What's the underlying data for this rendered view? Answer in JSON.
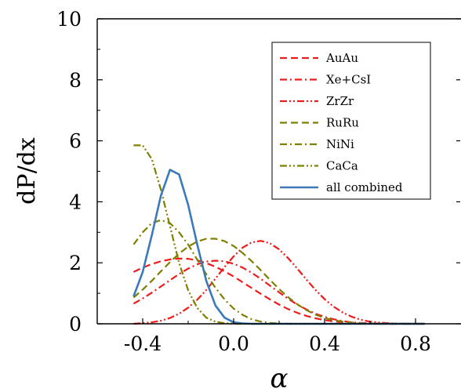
{
  "chart_data": {
    "type": "line",
    "xlabel": "α",
    "ylabel": "dP/dx",
    "xlim": [
      -0.6,
      1.0
    ],
    "ylim": [
      0,
      10
    ],
    "x_ticks": [
      -0.4,
      0.0,
      0.4,
      0.8
    ],
    "x_tick_labels": [
      "-0.4",
      "0.0",
      "0.4",
      "0.8"
    ],
    "y_ticks": [
      0,
      2,
      4,
      6,
      8,
      10
    ],
    "y_tick_labels": [
      "0",
      "2",
      "4",
      "6",
      "8",
      "10"
    ],
    "grid": false,
    "legend_position": "top-right",
    "x": [
      -0.44,
      -0.4,
      -0.36,
      -0.32,
      -0.28,
      -0.24,
      -0.2,
      -0.16,
      -0.12,
      -0.08,
      -0.04,
      0.0,
      0.04,
      0.08,
      0.12,
      0.16,
      0.2,
      0.24,
      0.28,
      0.32,
      0.36,
      0.4,
      0.44,
      0.48,
      0.52,
      0.56,
      0.6,
      0.64,
      0.68,
      0.72,
      0.76,
      0.8,
      0.84
    ],
    "series": [
      {
        "name": "AuAu",
        "color": "#ee1c1c",
        "dash": "dashed",
        "values": [
          1.7,
          1.84,
          1.96,
          2.05,
          2.11,
          2.14,
          2.13,
          2.08,
          1.99,
          1.87,
          1.72,
          1.55,
          1.36,
          1.17,
          0.98,
          0.8,
          0.63,
          0.48,
          0.36,
          0.26,
          0.18,
          0.12,
          0.08,
          0.05,
          0.03,
          0.02,
          0.01,
          0.0,
          0.0,
          0.0,
          0.0,
          0.0,
          0.0
        ]
      },
      {
        "name": "Xe+CsI",
        "color": "#ee1c1c",
        "dash": "dashdot",
        "values": [
          0.66,
          0.83,
          1.02,
          1.22,
          1.43,
          1.63,
          1.81,
          1.95,
          2.04,
          2.07,
          2.05,
          1.97,
          1.84,
          1.67,
          1.47,
          1.25,
          1.03,
          0.82,
          0.63,
          0.47,
          0.33,
          0.23,
          0.15,
          0.09,
          0.05,
          0.03,
          0.02,
          0.01,
          0.0,
          0.0,
          0.0,
          0.0,
          0.0
        ]
      },
      {
        "name": "ZrZr",
        "color": "#ee1c1c",
        "dash": "dashdotdot",
        "values": [
          0.0,
          0.02,
          0.05,
          0.1,
          0.19,
          0.33,
          0.53,
          0.79,
          1.11,
          1.48,
          1.86,
          2.21,
          2.5,
          2.67,
          2.72,
          2.64,
          2.44,
          2.15,
          1.81,
          1.45,
          1.11,
          0.81,
          0.56,
          0.37,
          0.23,
          0.13,
          0.07,
          0.04,
          0.02,
          0.01,
          0.0,
          0.0,
          0.0
        ]
      },
      {
        "name": "RuRu",
        "color": "#7f7f00",
        "dash": "dashed",
        "values": [
          0.86,
          1.12,
          1.41,
          1.72,
          2.02,
          2.3,
          2.53,
          2.7,
          2.79,
          2.79,
          2.71,
          2.55,
          2.32,
          2.05,
          1.75,
          1.44,
          1.14,
          0.87,
          0.64,
          0.45,
          0.3,
          0.19,
          0.12,
          0.07,
          0.04,
          0.02,
          0.01,
          0.0,
          0.0,
          0.0,
          0.0,
          0.0,
          0.0
        ]
      },
      {
        "name": "NiNi",
        "color": "#7f7f00",
        "dash": "dashdot",
        "values": [
          2.6,
          3.0,
          3.3,
          3.4,
          3.3,
          3.0,
          2.6,
          2.1,
          1.62,
          1.18,
          0.8,
          0.5,
          0.29,
          0.15,
          0.07,
          0.03,
          0.01,
          0.0,
          0.0,
          0.0,
          0.0,
          0.0,
          0.0,
          0.0,
          0.0,
          0.0,
          0.0,
          0.0,
          0.0,
          0.0,
          0.0,
          0.0,
          0.0
        ]
      },
      {
        "name": "CaCa",
        "color": "#7f7f00",
        "dash": "dashdotdot",
        "values": [
          5.85,
          5.85,
          5.4,
          4.4,
          3.2,
          2.0,
          1.1,
          0.52,
          0.2,
          0.07,
          0.02,
          0.0,
          0.0,
          0.0,
          0.0,
          0.0,
          0.0,
          0.0,
          0.0,
          0.0,
          0.0,
          0.0,
          0.0,
          0.0,
          0.0,
          0.0,
          0.0,
          0.0,
          0.0,
          0.0,
          0.0,
          0.0,
          0.0
        ]
      },
      {
        "name": "all combined",
        "color": "#3a7ab8",
        "dash": "solid",
        "values": [
          0.9,
          1.7,
          2.9,
          4.2,
          5.05,
          4.9,
          3.9,
          2.6,
          1.4,
          0.6,
          0.2,
          0.05,
          0.01,
          0.0,
          0.0,
          0.0,
          0.0,
          0.0,
          0.0,
          0.0,
          0.0,
          0.0,
          0.0,
          0.0,
          0.0,
          0.0,
          0.0,
          0.0,
          0.0,
          0.0,
          0.0,
          0.0,
          0.0
        ]
      }
    ]
  }
}
